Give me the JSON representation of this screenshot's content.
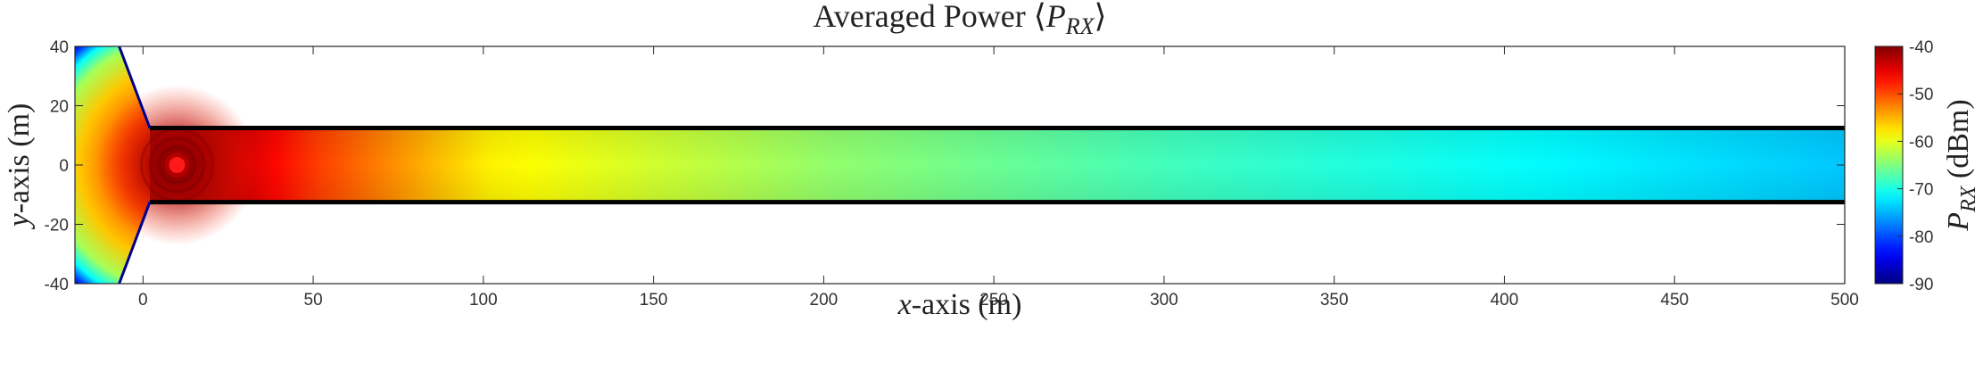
{
  "chart_data": {
    "type": "heatmap",
    "title_prefix": "Averaged Power ⟨",
    "title_var": "P",
    "title_sub": "RX",
    "title_suffix": "⟩",
    "xlabel_var": "x",
    "xlabel_rest": "-axis (m)",
    "ylabel_var": "y",
    "ylabel_rest": "-axis (m)",
    "xlim": [
      -20,
      500
    ],
    "ylim": [
      -40,
      40
    ],
    "xticks": [
      0,
      50,
      100,
      150,
      200,
      250,
      300,
      350,
      400,
      450,
      500
    ],
    "yticks": [
      -40,
      -20,
      0,
      20,
      40
    ],
    "colorbar": {
      "label_var": "P",
      "label_sub": "RX",
      "label_rest": "(dBm)",
      "range": [
        -90,
        -40
      ],
      "ticks": [
        -90,
        -80,
        -70,
        -60,
        -50,
        -40
      ],
      "colormap": "jet"
    },
    "transmitter": {
      "x": 10,
      "y": 0,
      "power_dbm": -40
    },
    "corridor": {
      "x_start": 2,
      "x_end": 500,
      "y_min": -12.5,
      "y_max": 12.5
    },
    "opening": {
      "x_outer": -7,
      "y_outer": 40
    },
    "power_profile_along_corridor": [
      {
        "x": 10,
        "dbm": -40
      },
      {
        "x": 50,
        "dbm": -49
      },
      {
        "x": 100,
        "dbm": -58
      },
      {
        "x": 200,
        "dbm": -64
      },
      {
        "x": 300,
        "dbm": -68
      },
      {
        "x": 400,
        "dbm": -71
      },
      {
        "x": 500,
        "dbm": -74
      }
    ]
  }
}
